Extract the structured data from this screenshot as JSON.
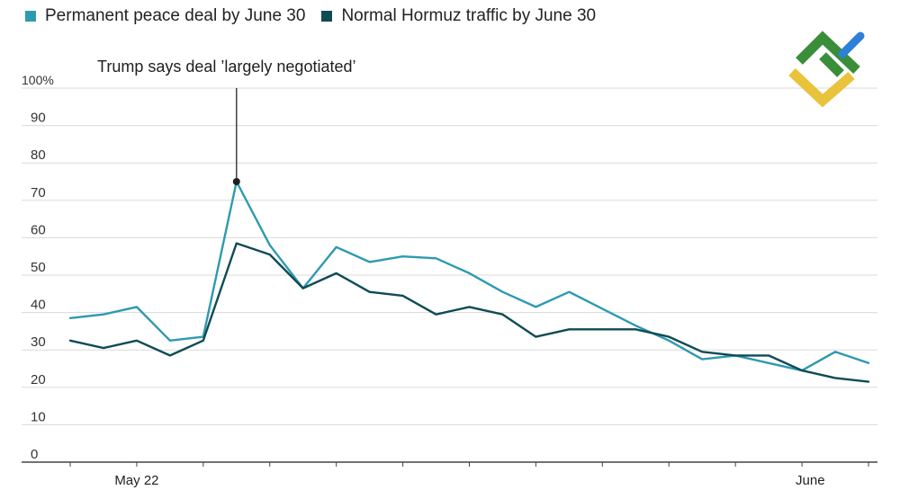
{
  "legend": {
    "series_1_label": "Permanent peace deal by June 30",
    "series_2_label": "Normal Hormuz traffic by June 30"
  },
  "annotation": {
    "text": "Trump says deal ’largely negotiated’"
  },
  "colors": {
    "series_1": "#2e9ab0",
    "series_2": "#0f4b55",
    "grid": "#d9d9d9",
    "axis": "#444444",
    "logo_green": "#3a8e3a",
    "logo_yellow": "#e8c33b",
    "logo_blue": "#2e7fd8"
  },
  "logo": {
    "icon": "brand-logo-icon"
  },
  "chart_data": {
    "type": "line",
    "title": "",
    "xlabel": "",
    "ylabel": "",
    "ylim": [
      0,
      100
    ],
    "y_ticks": [
      0,
      10,
      20,
      30,
      40,
      50,
      60,
      70,
      80,
      90,
      100
    ],
    "y_tick_labels": [
      "0",
      "10",
      "20",
      "30",
      "40",
      "50",
      "60",
      "70",
      "80",
      "90",
      "100%"
    ],
    "x_tick_labels": [
      {
        "index": 2,
        "label": "May 22"
      },
      {
        "index": 22.25,
        "label": "June"
      }
    ],
    "grid": true,
    "legend_position": "top-left",
    "x_count": 25,
    "series": [
      {
        "name": "Permanent peace deal by June 30",
        "color_key": "series_1",
        "values": [
          38.5,
          39.5,
          41.5,
          32.5,
          33.5,
          75,
          58,
          46.5,
          57.5,
          53.5,
          55,
          54.5,
          50.5,
          45.5,
          41.5,
          45.5,
          41,
          36.5,
          32.5,
          27.5,
          28.5,
          26.5,
          24.5,
          29.5,
          26.5
        ]
      },
      {
        "name": "Normal Hormuz traffic by June 30",
        "color_key": "series_2",
        "values": [
          32.5,
          30.5,
          32.5,
          28.5,
          32.5,
          58.5,
          55.5,
          46.5,
          50.5,
          45.5,
          44.5,
          39.5,
          41.5,
          39.5,
          33.5,
          35.5,
          35.5,
          35.5,
          33.5,
          29.5,
          28.5,
          28.5,
          24.5,
          22.5,
          21.5
        ]
      }
    ],
    "annotations": [
      {
        "text": "Trump says deal ’largely negotiated’",
        "index": 5,
        "value": 75
      }
    ]
  }
}
